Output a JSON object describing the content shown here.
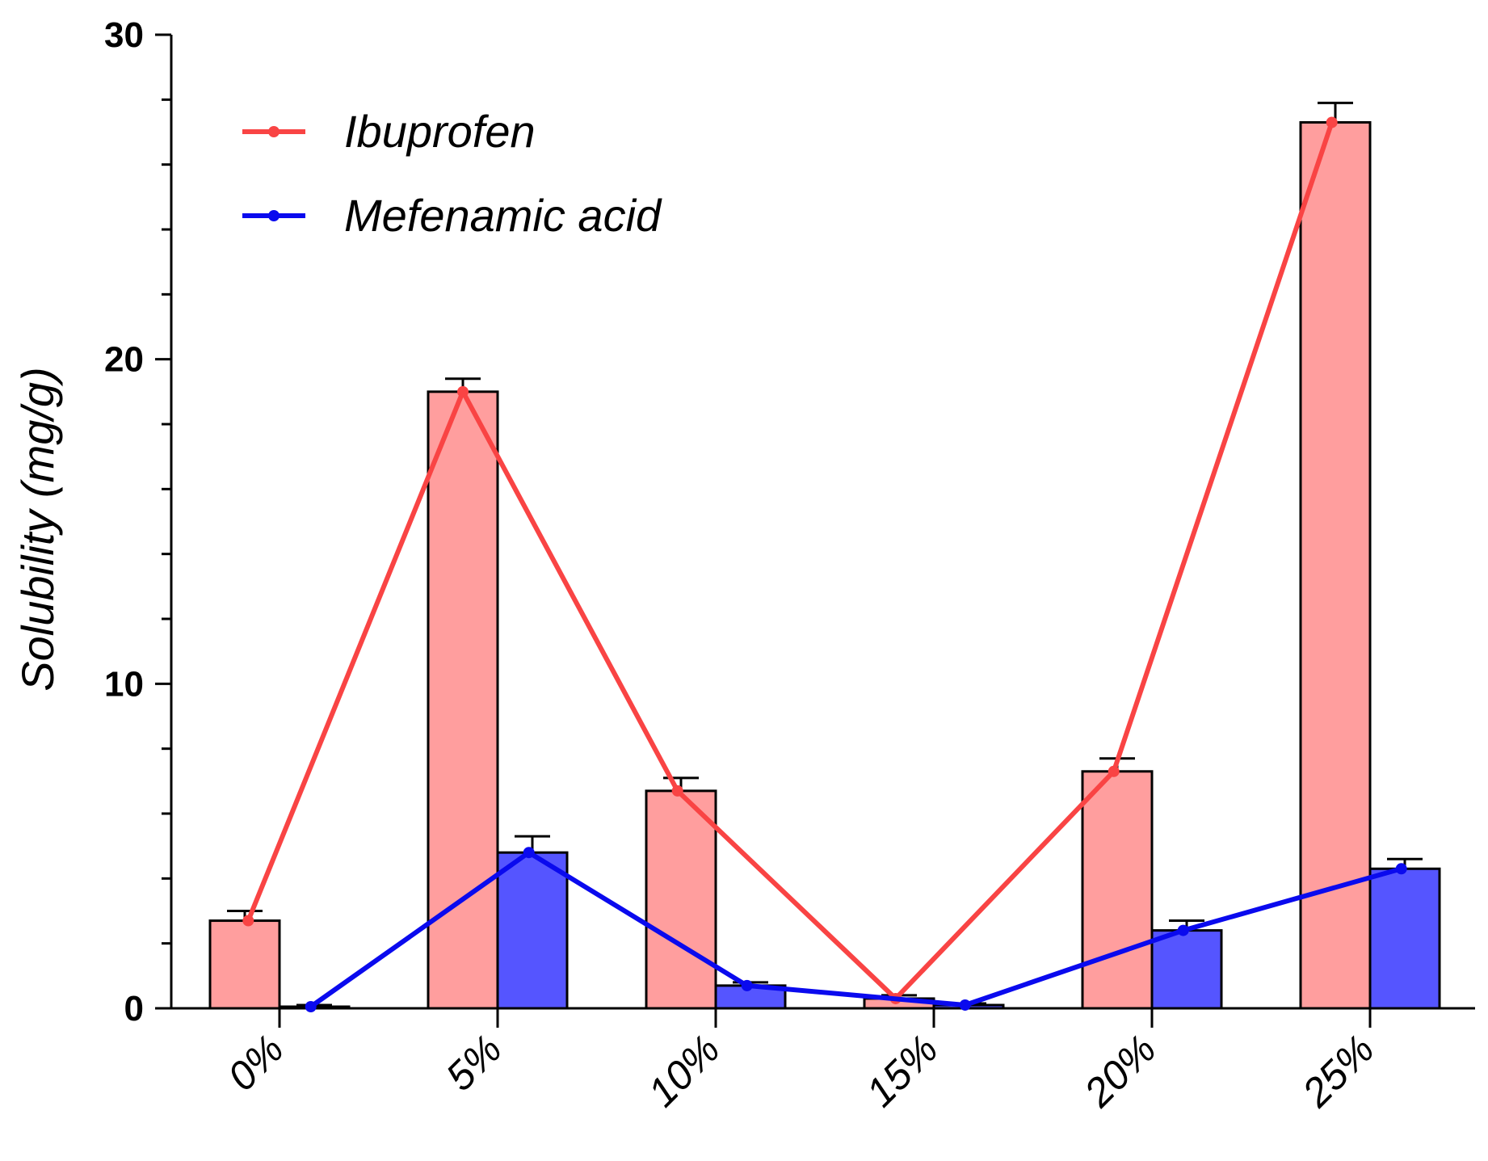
{
  "chart_data": {
    "type": "bar",
    "title": "",
    "xlabel": "",
    "ylabel": "Solubility (mg/g)",
    "ylim": [
      0,
      30
    ],
    "yticks_major": [
      0,
      10,
      20,
      30
    ],
    "yticks_minor_step": 2,
    "categories": [
      "0%",
      "5%",
      "10%",
      "15%",
      "20%",
      "25%"
    ],
    "series": [
      {
        "name": "Ibuprofen",
        "bar_color": "#ff9e9e",
        "line_color": "#f94444",
        "values": [
          2.7,
          19.0,
          6.7,
          0.3,
          7.3,
          27.3
        ],
        "errors": [
          0.3,
          0.4,
          0.4,
          0.1,
          0.4,
          0.6
        ]
      },
      {
        "name": "Mefenamic acid",
        "bar_color": "#5555ff",
        "line_color": "#0a0aee",
        "values": [
          0.05,
          4.8,
          0.7,
          0.1,
          2.4,
          4.3
        ],
        "errors": [
          0.05,
          0.5,
          0.1,
          0.05,
          0.3,
          0.3
        ]
      }
    ],
    "legend": {
      "location": "top-left"
    }
  },
  "colors": {
    "axis": "#000000",
    "bar_outline": "#000000"
  }
}
